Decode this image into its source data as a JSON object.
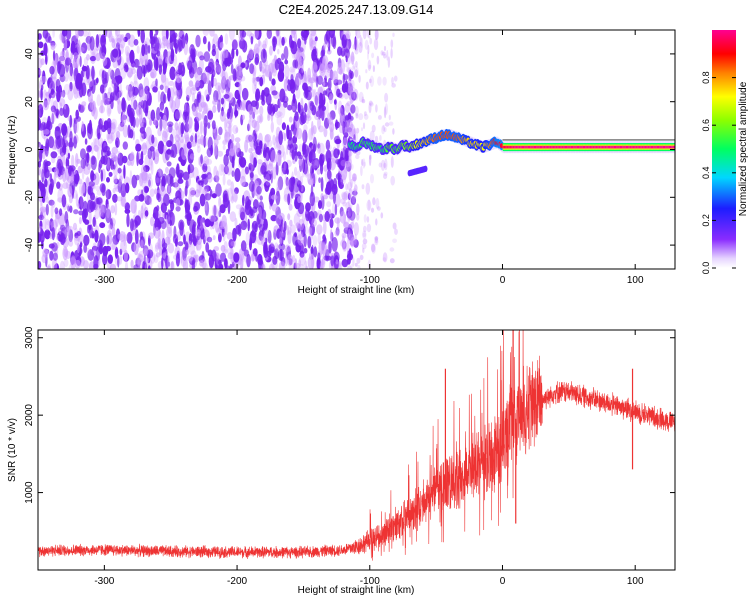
{
  "title": "C2E4.2025.247.13.09.G14",
  "colors": {
    "snr_line": "#ee3333",
    "spec_noise": "#7722ee",
    "spec_noise_light": "#cc99ff"
  },
  "chart_data": [
    {
      "type": "heatmap",
      "xlabel": "Height of straight line (km)",
      "ylabel": "Frequency (Hz)",
      "xlim": [
        -350,
        130
      ],
      "ylim": [
        -50,
        50
      ],
      "xticks": [
        -300,
        -200,
        -100,
        0,
        100
      ],
      "yticks": [
        -40,
        -20,
        0,
        20,
        40
      ],
      "grid": false,
      "colorbar": {
        "label": "Normalized spectral amplitude",
        "range": [
          0,
          1
        ],
        "ticks": [
          0.0,
          0.2,
          0.4,
          0.6,
          0.8
        ],
        "tick_labels": [
          "0.0",
          "0.2",
          "0.4",
          "0.6",
          "0.8"
        ],
        "colormap": "rainbow (white-violet-blue-cyan-green-yellow-red-magenta)"
      },
      "signal_trace": {
        "x": [
          -115,
          -110,
          -105,
          -100,
          -95,
          -90,
          -85,
          -80,
          -75,
          -70,
          -65,
          -60,
          -55,
          -50,
          -45,
          -40,
          -35,
          -30,
          -25,
          -20,
          -15,
          -10,
          -5,
          0,
          10,
          20,
          40,
          60,
          80,
          100,
          130
        ],
        "y": [
          2,
          1,
          3,
          2,
          1,
          0,
          1,
          0,
          2,
          1,
          2,
          3,
          4,
          5,
          6,
          6,
          5,
          4,
          3,
          2,
          1,
          2,
          3,
          1,
          1,
          1,
          1,
          1,
          1,
          1,
          1
        ],
        "amplitude": [
          0.5,
          0.5,
          0.55,
          0.5,
          0.55,
          0.5,
          0.6,
          0.55,
          0.6,
          0.6,
          0.7,
          0.75,
          0.8,
          0.85,
          0.85,
          0.85,
          0.85,
          0.8,
          0.75,
          0.75,
          0.7,
          0.8,
          0.9,
          0.95,
          1,
          1,
          1,
          1,
          1,
          1,
          1
        ]
      },
      "noise_region_x": [
        -350,
        -100
      ]
    },
    {
      "type": "line",
      "xlabel": "Height of straight line (km)",
      "ylabel": "SNR (10 * v/v)",
      "xlim": [
        -350,
        130
      ],
      "ylim": [
        0,
        3100
      ],
      "xticks": [
        -300,
        -200,
        -100,
        0,
        100
      ],
      "yticks": [
        1000,
        2000,
        3000
      ],
      "grid": false,
      "series": [
        {
          "x": [
            -350,
            -300,
            -250,
            -200,
            -150,
            -120,
            -110,
            -100,
            -90,
            -80,
            -70,
            -60,
            -50,
            -40,
            -30,
            -20,
            -10,
            0,
            10,
            20,
            30,
            40,
            50,
            60,
            70,
            80,
            90,
            100,
            110,
            120,
            130
          ],
          "y": [
            250,
            260,
            240,
            230,
            230,
            260,
            300,
            380,
            450,
            600,
            700,
            850,
            1000,
            1150,
            1200,
            1350,
            1450,
            1650,
            1900,
            2100,
            2200,
            2300,
            2300,
            2250,
            2200,
            2150,
            2100,
            2050,
            2000,
            1950,
            1900
          ]
        }
      ],
      "spikes": [
        {
          "x": -43,
          "y": 2600
        },
        {
          "x": 8,
          "y": 3100
        },
        {
          "x": 98,
          "y": 2600
        },
        {
          "x": 98,
          "y": 1300
        },
        {
          "x": 10,
          "y": 600
        }
      ]
    }
  ]
}
